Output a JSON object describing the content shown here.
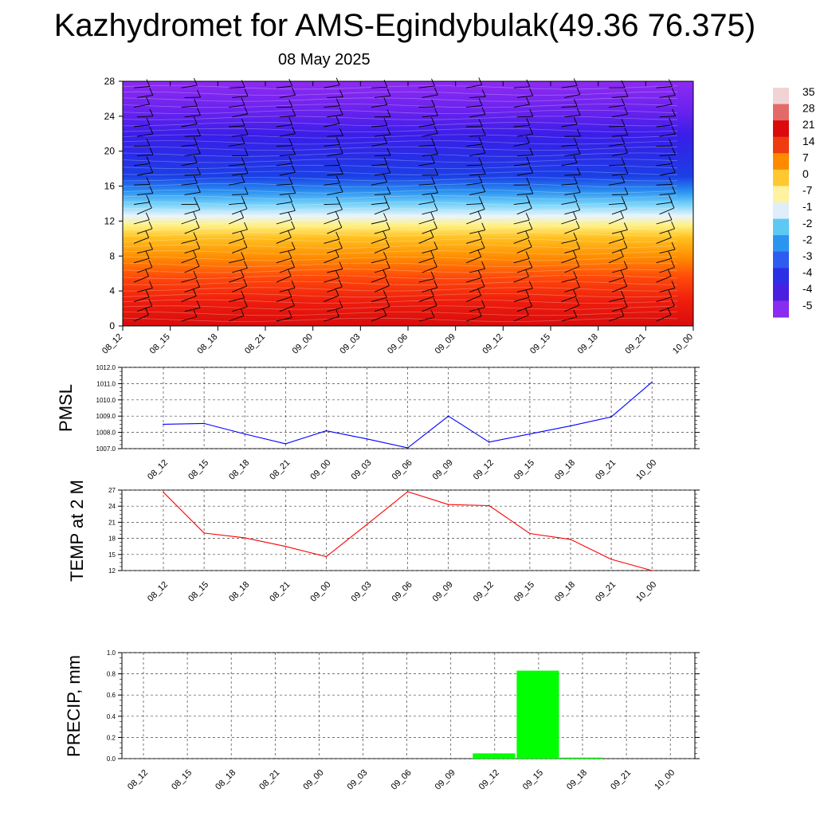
{
  "title": "Kazhydromet for AMS-Egindybulak(49.36 76.375)",
  "subtitle": "08 May 2025",
  "chart_data": [
    {
      "type": "heatmap",
      "title": "",
      "xlabel": "",
      "ylabel": "",
      "x_ticks": [
        "08_12",
        "08_15",
        "08_18",
        "08_21",
        "09_00",
        "09_03",
        "09_06",
        "09_09",
        "09_12",
        "09_15",
        "09_18",
        "09_21",
        "10_00"
      ],
      "y_ticks": [
        0,
        4,
        8,
        12,
        16,
        20,
        24,
        28
      ],
      "ylim": [
        0,
        28
      ],
      "colorbar_labels": [
        "35",
        "28",
        "21",
        "14",
        "7",
        "0",
        "-7",
        "-1",
        "-2",
        "-2",
        "-3",
        "-4",
        "-4",
        "-5"
      ],
      "colorbar_colors": [
        "#f2d3d3",
        "#e46a6a",
        "#dc0a0a",
        "#ee3b10",
        "#ff8a00",
        "#ffc830",
        "#fff2a0",
        "#dfeefa",
        "#5ec8f4",
        "#2a95ef",
        "#2f5cf0",
        "#2d2fe6",
        "#4a1fe0",
        "#8a2bf0"
      ],
      "has_wind_barbs": true
    },
    {
      "type": "line",
      "ylabel": "PMSL",
      "categories": [
        "08_12",
        "08_15",
        "08_18",
        "08_21",
        "09_00",
        "09_03",
        "09_06",
        "09_09",
        "09_12",
        "09_15",
        "09_18",
        "09_21",
        "10_00"
      ],
      "values": [
        1008.5,
        1008.55,
        1007.9,
        1007.3,
        1008.1,
        1007.6,
        1007.05,
        1009.0,
        1007.4,
        1007.9,
        1008.4,
        1008.95,
        1011.1
      ],
      "y_ticks": [
        "1007.0",
        "1008.0",
        "1009.0",
        "1010.0",
        "1011.0",
        "1012.0"
      ],
      "ylim": [
        1007,
        1012
      ],
      "color": "#0000ff",
      "grid": true
    },
    {
      "type": "line",
      "ylabel": "TEMP at 2 M",
      "categories": [
        "08_12",
        "08_15",
        "08_18",
        "08_21",
        "09_00",
        "09_03",
        "09_06",
        "09_09",
        "09_12",
        "09_15",
        "09_18",
        "09_21",
        "10_00"
      ],
      "values": [
        26.6,
        19.0,
        18.1,
        16.5,
        14.6,
        20.6,
        26.7,
        24.3,
        24.1,
        18.9,
        17.8,
        14.1,
        12.0
      ],
      "y_ticks": [
        "12",
        "15",
        "18",
        "21",
        "24",
        "27"
      ],
      "ylim": [
        12,
        27
      ],
      "color": "#ff0000",
      "grid": true
    },
    {
      "type": "bar",
      "ylabel": "PRECIP, mm",
      "categories": [
        "08_12",
        "08_15",
        "08_18",
        "08_21",
        "09_00",
        "09_03",
        "09_06",
        "09_09",
        "09_12",
        "09_15",
        "09_18",
        "09_21",
        "10_00"
      ],
      "values": [
        0,
        0,
        0,
        0,
        0,
        0,
        0,
        0,
        0.05,
        0.83,
        0.01,
        0,
        0
      ],
      "y_ticks": [
        "0.0",
        "0.2",
        "0.4",
        "0.6",
        "0.8",
        "1.0"
      ],
      "ylim": [
        0,
        1
      ],
      "color": "#00ff00",
      "grid": true
    }
  ]
}
